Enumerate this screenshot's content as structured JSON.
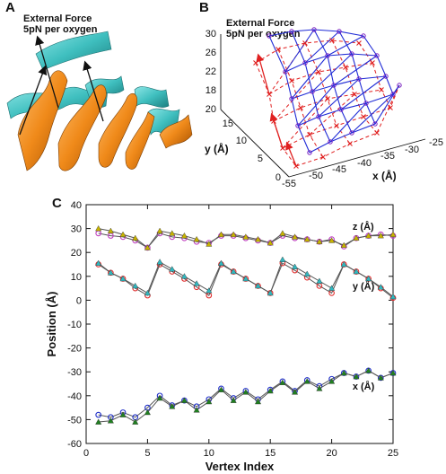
{
  "panels": {
    "a": {
      "letter": "A",
      "annotation_line1": "External Force",
      "annotation_line2": "5pN per oxygen"
    },
    "b": {
      "letter": "B",
      "annotation_line1": "External Force",
      "annotation_line2": "5pN per oxygen",
      "z_ticks": [
        "30",
        "26",
        "22",
        "18"
      ],
      "y_ticks": [
        "20",
        "15",
        "10",
        "5",
        "0"
      ],
      "x_ticks": [
        "-55",
        "-50",
        "-45",
        "-40",
        "-35",
        "-30",
        "-25"
      ],
      "y_label": "y (Å)",
      "x_label": "x (Å)"
    },
    "c": {
      "letter": "C"
    }
  },
  "colors": {
    "ribbon_cyan": "#3fbfbf",
    "ribbon_orange": "#f08a1a",
    "mesh_blue": "#1f2bd6",
    "mesh_red": "#e02020",
    "z_series": "#c040c0",
    "z_series_b": "#c8b400",
    "y_series": "#e03030",
    "y_series_b": "#30b8c0",
    "x_series": "#2030c8",
    "x_series_b": "#208020"
  },
  "chart_data": {
    "type": "line",
    "xlabel": "Vertex Index",
    "ylabel": "Position (Å)",
    "xlim": [
      0,
      25
    ],
    "ylim": [
      -60,
      40
    ],
    "xticks": [
      0,
      5,
      10,
      15,
      20,
      25
    ],
    "yticks": [
      -60,
      -50,
      -40,
      -30,
      -20,
      -10,
      0,
      10,
      20,
      30,
      40
    ],
    "grid": false,
    "x": [
      1,
      2,
      3,
      4,
      5,
      6,
      7,
      8,
      9,
      10,
      11,
      12,
      13,
      14,
      15,
      16,
      17,
      18,
      19,
      20,
      21,
      22,
      23,
      24,
      25
    ],
    "series_labels": [
      {
        "text": "z (Å)",
        "at_x": 21.7,
        "at_y": 31
      },
      {
        "text": "y (Å)",
        "at_x": 21.7,
        "at_y": 6
      },
      {
        "text": "x (Å)",
        "at_x": 21.7,
        "at_y": -36
      }
    ],
    "series": [
      {
        "group": "z",
        "marker": "circle",
        "color": "#c040c0",
        "values": [
          28,
          27,
          26.5,
          25,
          22,
          28,
          26.5,
          26,
          24.5,
          24,
          27,
          27,
          26,
          25,
          24,
          27,
          26,
          25.5,
          24.5,
          25.5,
          22.5,
          26,
          27,
          27.5,
          27
        ]
      },
      {
        "group": "z",
        "marker": "triangle",
        "color": "#c8b400",
        "values": [
          30,
          29,
          27.5,
          26,
          22,
          29,
          28,
          27,
          25.5,
          23.5,
          27.5,
          27.5,
          26.5,
          25.5,
          24,
          28,
          26.5,
          25.5,
          24.5,
          25,
          23,
          26,
          27,
          27,
          27.5
        ]
      },
      {
        "group": "y",
        "marker": "circle",
        "color": "#e03030",
        "values": [
          15,
          11.5,
          9,
          5,
          2,
          15,
          12,
          9,
          5.5,
          2,
          15,
          12,
          9,
          6,
          3,
          15.5,
          12.5,
          9.5,
          6,
          3,
          15,
          12,
          9,
          5,
          1
        ]
      },
      {
        "group": "y",
        "marker": "triangle",
        "color": "#30b8c0",
        "values": [
          15.5,
          11.5,
          9,
          6,
          3,
          16,
          13,
          10,
          7,
          4,
          15.5,
          12,
          9,
          6,
          3,
          17,
          14,
          11,
          8,
          5,
          15,
          12,
          9,
          5.5,
          1.5
        ]
      },
      {
        "group": "x",
        "marker": "circle",
        "color": "#2030c8",
        "values": [
          -48,
          -49,
          -47,
          -49,
          -45,
          -40,
          -44,
          -42,
          -44.5,
          -41.5,
          -37,
          -41,
          -38,
          -41.5,
          -37.5,
          -34,
          -38,
          -33.5,
          -36,
          -33,
          -30.5,
          -32,
          -29.5,
          -32.5,
          -30.5
        ]
      },
      {
        "group": "x",
        "marker": "triangle",
        "color": "#208020",
        "values": [
          -51,
          -50.5,
          -48,
          -51,
          -47,
          -41,
          -44.5,
          -42,
          -46,
          -42.5,
          -37.5,
          -42,
          -38.5,
          -42.5,
          -38,
          -34.5,
          -38.5,
          -34,
          -37,
          -34,
          -30.5,
          -32,
          -29.5,
          -32.5,
          -30.5
        ]
      }
    ]
  }
}
